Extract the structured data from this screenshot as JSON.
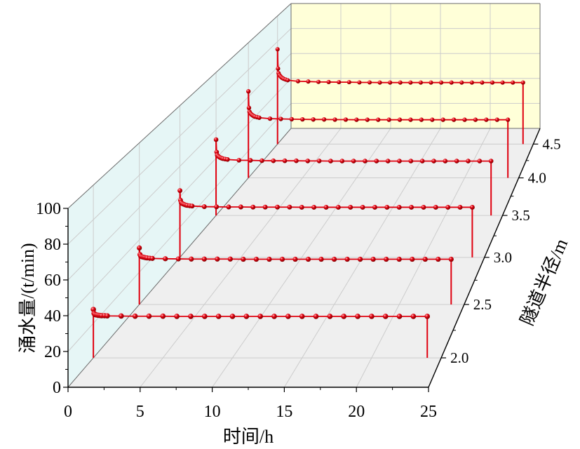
{
  "chart_data": {
    "type": "line",
    "xlabel": "时间/h",
    "ylabel": "涌水量/(t/min)",
    "zlabel": "隧道半径/m",
    "xlim": [
      0,
      25
    ],
    "ylim": [
      0,
      100
    ],
    "zlim": [
      1.75,
      4.75
    ],
    "xticks": [
      "0",
      "5",
      "10",
      "15",
      "20",
      "25"
    ],
    "yticks": [
      "0",
      "20",
      "40",
      "60",
      "80",
      "100"
    ],
    "zticks": [
      "2.0",
      "2.5",
      "3.0",
      "3.5",
      "4.0",
      "4.5"
    ],
    "grid": true,
    "x": [
      0,
      0.05,
      0.1,
      0.2,
      0.3,
      0.4,
      0.5,
      0.6,
      0.8,
      1,
      2,
      3,
      4,
      5,
      6,
      7,
      8,
      9,
      10,
      11,
      12,
      13,
      14,
      15,
      16,
      17,
      18,
      19,
      20,
      21,
      22,
      23,
      24
    ],
    "series": [
      {
        "z": 2.0,
        "values": [
          28,
          25.7,
          25.1,
          24.9,
          24.7,
          24.6,
          24.5,
          24.4,
          24.4,
          24.3,
          24.2,
          24.1,
          24.1,
          24.1,
          24,
          24,
          24,
          24,
          24,
          24,
          24,
          24,
          24,
          24,
          24,
          24,
          24,
          24,
          24,
          24,
          24,
          24,
          24
        ]
      },
      {
        "z": 2.5,
        "values": [
          35,
          30.9,
          30,
          29.5,
          29.3,
          29.1,
          28.9,
          28.8,
          28.6,
          28.5,
          28.3,
          28.2,
          28.1,
          28.1,
          28.1,
          28.1,
          28,
          28,
          28,
          28,
          28,
          28,
          28,
          28,
          28,
          28,
          28,
          28,
          28,
          28,
          28,
          28,
          28
        ]
      },
      {
        "z": 3.0,
        "values": [
          44,
          37.6,
          36.1,
          35.4,
          35,
          34.7,
          34.4,
          34.2,
          34,
          33.8,
          33.4,
          33.3,
          33.2,
          33.2,
          33.1,
          33.1,
          33.1,
          33.1,
          33,
          33,
          33,
          33,
          33,
          33,
          33,
          33,
          33,
          33,
          33,
          33,
          33,
          33,
          33
        ]
      },
      {
        "z": 3.5,
        "values": [
          53,
          44.3,
          42.2,
          41.3,
          40.7,
          40.3,
          40,
          39.7,
          39.4,
          39.1,
          38.6,
          38.5,
          38.3,
          38.2,
          38.2,
          38.2,
          38.1,
          38.1,
          38,
          38,
          38,
          38,
          38,
          38,
          38,
          38,
          38,
          38,
          38,
          38,
          38,
          38,
          38
        ]
      },
      {
        "z": 4.0,
        "values": [
          64,
          51.8,
          48.9,
          47.6,
          46.8,
          46.2,
          45.7,
          45.3,
          44.9,
          44.5,
          43.8,
          43.6,
          43.4,
          43.3,
          43.2,
          43.2,
          43.1,
          43.1,
          43,
          43,
          43,
          43,
          43,
          43,
          43,
          43,
          43,
          43,
          43,
          43,
          43,
          43,
          43
        ]
      },
      {
        "z": 4.5,
        "values": [
          74,
          58.9,
          55.3,
          53.7,
          52.7,
          51.9,
          51.4,
          50.9,
          50.3,
          49.8,
          49,
          48.8,
          48.5,
          48.4,
          48.3,
          48.3,
          48.1,
          48.1,
          48,
          48,
          48,
          48,
          48,
          48,
          48,
          48,
          48,
          48,
          48,
          48,
          48,
          48,
          48
        ]
      }
    ],
    "colors": {
      "series": "#e0000f",
      "left_wall": "#e6f6f6",
      "back_wall": "#ffffd8",
      "floor": "#efefef",
      "grid": "#cccccc",
      "edge": "#6b6b6b",
      "axis": "#000000"
    }
  }
}
